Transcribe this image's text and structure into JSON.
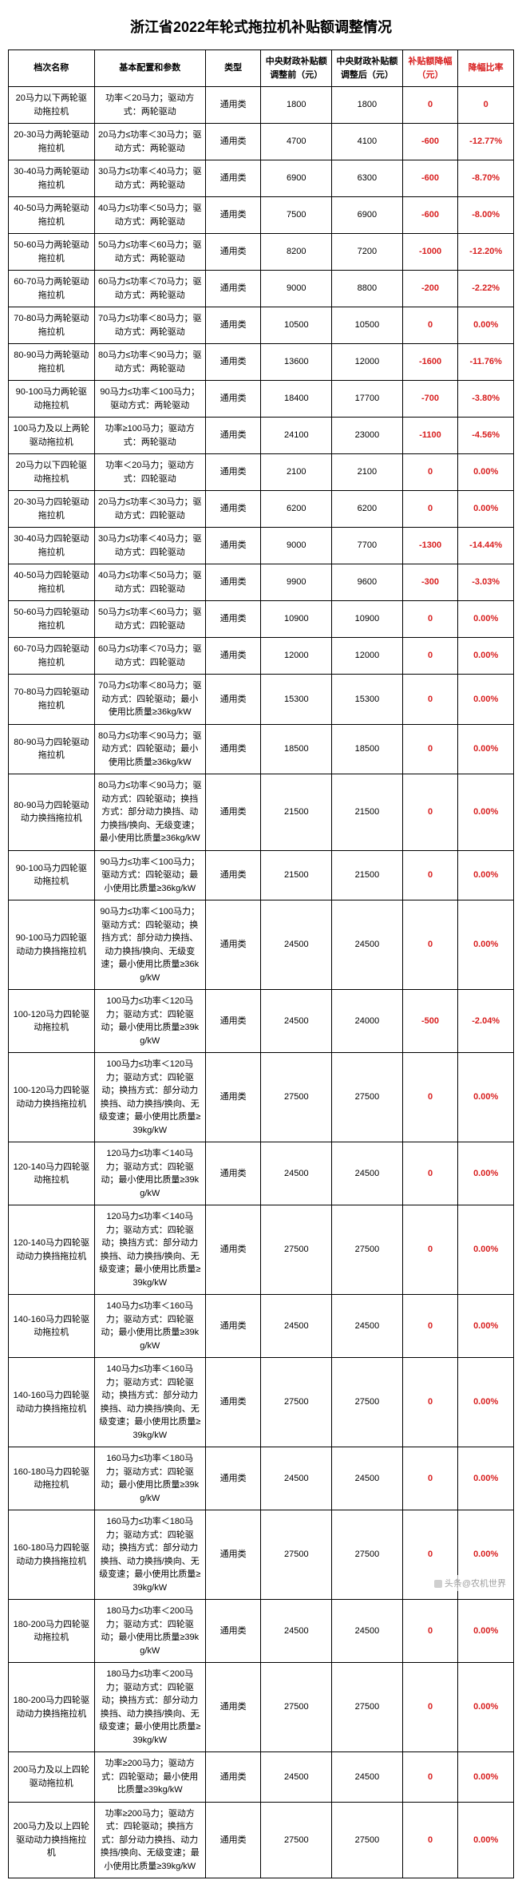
{
  "title": "浙江省2022年轮式拖拉机补贴额调整情况",
  "watermark": "头条@农机世界",
  "columns": [
    "档次名称",
    "基本配置和参数",
    "类型",
    "中央财政补贴额调整前（元）",
    "中央财政补贴额调整后（元）",
    "补贴额降幅（元）",
    "降幅比率"
  ],
  "column_classes": [
    "col-name",
    "col-spec",
    "col-type",
    "col-before",
    "col-after",
    "col-diff",
    "col-rate"
  ],
  "red_header_indices": [
    5,
    6
  ],
  "rows": [
    {
      "name": "20马力以下两轮驱动拖拉机",
      "spec": "功率＜20马力；驱动方式：两轮驱动",
      "type": "通用类",
      "before": "1800",
      "after": "1800",
      "diff": "0",
      "rate": "0"
    },
    {
      "name": "20-30马力两轮驱动拖拉机",
      "spec": "20马力≤功率＜30马力；驱动方式：两轮驱动",
      "type": "通用类",
      "before": "4700",
      "after": "4100",
      "diff": "-600",
      "rate": "-12.77%"
    },
    {
      "name": "30-40马力两轮驱动拖拉机",
      "spec": "30马力≤功率＜40马力；驱动方式：两轮驱动",
      "type": "通用类",
      "before": "6900",
      "after": "6300",
      "diff": "-600",
      "rate": "-8.70%"
    },
    {
      "name": "40-50马力两轮驱动拖拉机",
      "spec": "40马力≤功率＜50马力；驱动方式：两轮驱动",
      "type": "通用类",
      "before": "7500",
      "after": "6900",
      "diff": "-600",
      "rate": "-8.00%"
    },
    {
      "name": "50-60马力两轮驱动拖拉机",
      "spec": "50马力≤功率＜60马力；驱动方式：两轮驱动",
      "type": "通用类",
      "before": "8200",
      "after": "7200",
      "diff": "-1000",
      "rate": "-12.20%"
    },
    {
      "name": "60-70马力两轮驱动拖拉机",
      "spec": "60马力≤功率＜70马力；驱动方式：两轮驱动",
      "type": "通用类",
      "before": "9000",
      "after": "8800",
      "diff": "-200",
      "rate": "-2.22%"
    },
    {
      "name": "70-80马力两轮驱动拖拉机",
      "spec": "70马力≤功率＜80马力；驱动方式：两轮驱动",
      "type": "通用类",
      "before": "10500",
      "after": "10500",
      "diff": "0",
      "rate": "0.00%"
    },
    {
      "name": "80-90马力两轮驱动拖拉机",
      "spec": "80马力≤功率＜90马力；驱动方式：两轮驱动",
      "type": "通用类",
      "before": "13600",
      "after": "12000",
      "diff": "-1600",
      "rate": "-11.76%"
    },
    {
      "name": "90-100马力两轮驱动拖拉机",
      "spec": "90马力≤功率＜100马力；驱动方式：两轮驱动",
      "type": "通用类",
      "before": "18400",
      "after": "17700",
      "diff": "-700",
      "rate": "-3.80%"
    },
    {
      "name": "100马力及以上两轮驱动拖拉机",
      "spec": "功率≥100马力；驱动方式：两轮驱动",
      "type": "通用类",
      "before": "24100",
      "after": "23000",
      "diff": "-1100",
      "rate": "-4.56%"
    },
    {
      "name": "20马力以下四轮驱动拖拉机",
      "spec": "功率＜20马力；驱动方式：四轮驱动",
      "type": "通用类",
      "before": "2100",
      "after": "2100",
      "diff": "0",
      "rate": "0.00%"
    },
    {
      "name": "20-30马力四轮驱动拖拉机",
      "spec": "20马力≤功率＜30马力；驱动方式：四轮驱动",
      "type": "通用类",
      "before": "6200",
      "after": "6200",
      "diff": "0",
      "rate": "0.00%"
    },
    {
      "name": "30-40马力四轮驱动拖拉机",
      "spec": "30马力≤功率＜40马力；驱动方式：四轮驱动",
      "type": "通用类",
      "before": "9000",
      "after": "7700",
      "diff": "-1300",
      "rate": "-14.44%"
    },
    {
      "name": "40-50马力四轮驱动拖拉机",
      "spec": "40马力≤功率＜50马力；驱动方式：四轮驱动",
      "type": "通用类",
      "before": "9900",
      "after": "9600",
      "diff": "-300",
      "rate": "-3.03%"
    },
    {
      "name": "50-60马力四轮驱动拖拉机",
      "spec": "50马力≤功率＜60马力；驱动方式：四轮驱动",
      "type": "通用类",
      "before": "10900",
      "after": "10900",
      "diff": "0",
      "rate": "0.00%"
    },
    {
      "name": "60-70马力四轮驱动拖拉机",
      "spec": "60马力≤功率＜70马力；驱动方式：四轮驱动",
      "type": "通用类",
      "before": "12000",
      "after": "12000",
      "diff": "0",
      "rate": "0.00%"
    },
    {
      "name": "70-80马力四轮驱动拖拉机",
      "spec": "70马力≤功率＜80马力；驱动方式：四轮驱动；最小使用比质量≥36kg/kW",
      "type": "通用类",
      "before": "15300",
      "after": "15300",
      "diff": "0",
      "rate": "0.00%"
    },
    {
      "name": "80-90马力四轮驱动拖拉机",
      "spec": "80马力≤功率＜90马力；驱动方式：四轮驱动；最小使用比质量≥36kg/kW",
      "type": "通用类",
      "before": "18500",
      "after": "18500",
      "diff": "0",
      "rate": "0.00%"
    },
    {
      "name": "80-90马力四轮驱动动力换挡拖拉机",
      "spec": "80马力≤功率＜90马力；驱动方式：四轮驱动；换挡方式：部分动力换挡、动力换挡/换向、无级变速；最小使用比质量≥36kg/kW",
      "type": "通用类",
      "before": "21500",
      "after": "21500",
      "diff": "0",
      "rate": "0.00%"
    },
    {
      "name": "90-100马力四轮驱动拖拉机",
      "spec": "90马力≤功率＜100马力；驱动方式：四轮驱动；最小使用比质量≥36kg/kW",
      "type": "通用类",
      "before": "21500",
      "after": "21500",
      "diff": "0",
      "rate": "0.00%"
    },
    {
      "name": "90-100马力四轮驱动动力换挡拖拉机",
      "spec": "90马力≤功率＜100马力；驱动方式：四轮驱动；换挡方式：部分动力换挡、动力换挡/换向、无级变速；最小使用比质量≥36kg/kW",
      "type": "通用类",
      "before": "24500",
      "after": "24500",
      "diff": "0",
      "rate": "0.00%"
    },
    {
      "name": "100-120马力四轮驱动拖拉机",
      "spec": "100马力≤功率＜120马力；驱动方式：四轮驱动；最小使用比质量≥39kg/kW",
      "type": "通用类",
      "before": "24500",
      "after": "24000",
      "diff": "-500",
      "rate": "-2.04%"
    },
    {
      "name": "100-120马力四轮驱动动力换挡拖拉机",
      "spec": "100马力≤功率＜120马力；驱动方式：四轮驱动；换挡方式：部分动力换挡、动力换挡/换向、无级变速；最小使用比质量≥39kg/kW",
      "type": "通用类",
      "before": "27500",
      "after": "27500",
      "diff": "0",
      "rate": "0.00%"
    },
    {
      "name": "120-140马力四轮驱动拖拉机",
      "spec": "120马力≤功率＜140马力；驱动方式：四轮驱动；最小使用比质量≥39kg/kW",
      "type": "通用类",
      "before": "24500",
      "after": "24500",
      "diff": "0",
      "rate": "0.00%"
    },
    {
      "name": "120-140马力四轮驱动动力换挡拖拉机",
      "spec": "120马力≤功率＜140马力；驱动方式：四轮驱动；换挡方式：部分动力换挡、动力换挡/换向、无级变速；最小使用比质量≥39kg/kW",
      "type": "通用类",
      "before": "27500",
      "after": "27500",
      "diff": "0",
      "rate": "0.00%"
    },
    {
      "name": "140-160马力四轮驱动拖拉机",
      "spec": "140马力≤功率＜160马力；驱动方式：四轮驱动；最小使用比质量≥39kg/kW",
      "type": "通用类",
      "before": "24500",
      "after": "24500",
      "diff": "0",
      "rate": "0.00%"
    },
    {
      "name": "140-160马力四轮驱动动力换挡拖拉机",
      "spec": "140马力≤功率＜160马力；驱动方式：四轮驱动；换挡方式：部分动力换挡、动力换挡/换向、无级变速；最小使用比质量≥39kg/kW",
      "type": "通用类",
      "before": "27500",
      "after": "27500",
      "diff": "0",
      "rate": "0.00%"
    },
    {
      "name": "160-180马力四轮驱动拖拉机",
      "spec": "160马力≤功率＜180马力；驱动方式：四轮驱动；最小使用比质量≥39kg/kW",
      "type": "通用类",
      "before": "24500",
      "after": "24500",
      "diff": "0",
      "rate": "0.00%"
    },
    {
      "name": "160-180马力四轮驱动动力换挡拖拉机",
      "spec": "160马力≤功率＜180马力；驱动方式：四轮驱动；换挡方式：部分动力换挡、动力换挡/换向、无级变速；最小使用比质量≥39kg/kW",
      "type": "通用类",
      "before": "27500",
      "after": "27500",
      "diff": "0",
      "rate": "0.00%"
    },
    {
      "name": "180-200马力四轮驱动拖拉机",
      "spec": "180马力≤功率＜200马力；驱动方式：四轮驱动；最小使用比质量≥39kg/kW",
      "type": "通用类",
      "before": "24500",
      "after": "24500",
      "diff": "0",
      "rate": "0.00%"
    },
    {
      "name": "180-200马力四轮驱动动力换挡拖拉机",
      "spec": "180马力≤功率＜200马力；驱动方式：四轮驱动；换挡方式：部分动力换挡、动力换挡/换向、无级变速；最小使用比质量≥39kg/kW",
      "type": "通用类",
      "before": "27500",
      "after": "27500",
      "diff": "0",
      "rate": "0.00%"
    },
    {
      "name": "200马力及以上四轮驱动拖拉机",
      "spec": "功率≥200马力；驱动方式：四轮驱动；最小使用比质量≥39kg/kW",
      "type": "通用类",
      "before": "24500",
      "after": "24500",
      "diff": "0",
      "rate": "0.00%"
    },
    {
      "name": "200马力及以上四轮驱动动力换挡拖拉机",
      "spec": "功率≥200马力；驱动方式：四轮驱动；换挡方式：部分动力换挡、动力换挡/换向、无级变速；最小使用比质量≥39kg/kW",
      "type": "通用类",
      "before": "27500",
      "after": "27500",
      "diff": "0",
      "rate": "0.00%"
    }
  ],
  "styling": {
    "title_fontsize": 18,
    "cell_fontsize": 11,
    "border_color": "#000000",
    "text_color": "#000000",
    "highlight_color": "#d81e1e",
    "background_color": "#ffffff"
  }
}
